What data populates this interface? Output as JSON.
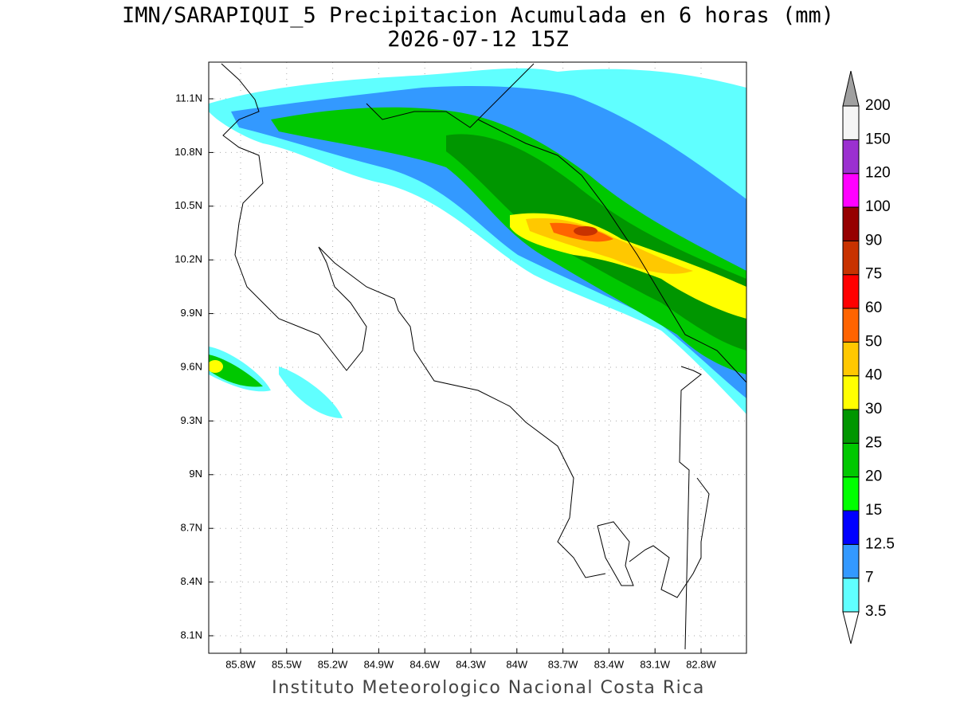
{
  "title": "IMN/SARAPIQUI_5 Precipitacion Acumulada en 6 horas (mm)",
  "subtitle": "2026-07-12 15Z",
  "map": {
    "lat_labels": [
      "11.1N",
      "10.8N",
      "10.5N",
      "10.2N",
      "9.9N",
      "9.6N",
      "9.3N",
      "9N",
      "8.7N",
      "8.4N",
      "8.1N"
    ],
    "lon_labels": [
      "85.8W",
      "85.5W",
      "85.2W",
      "84.9W",
      "84.6W",
      "84.3W",
      "84W",
      "83.7W",
      "83.4W",
      "83.1W",
      "82.8W"
    ]
  },
  "colorbar": {
    "levels": [
      "3.5",
      "7",
      "12.5",
      "15",
      "20",
      "25",
      "30",
      "40",
      "50",
      "60",
      "75",
      "90",
      "100",
      "120",
      "150",
      "200"
    ],
    "colors": [
      "#ffffff",
      "#60ffff",
      "#3399ff",
      "#0000ff",
      "#00ff00",
      "#00c800",
      "#009600",
      "#ffff00",
      "#ffc800",
      "#ff6400",
      "#ff0000",
      "#c83200",
      "#960000",
      "#ff00ff",
      "#9b30d0",
      "#f5f5f5",
      "#a0a0a0"
    ]
  },
  "footer": "Instituto Meteorologico Nacional Costa Rica"
}
